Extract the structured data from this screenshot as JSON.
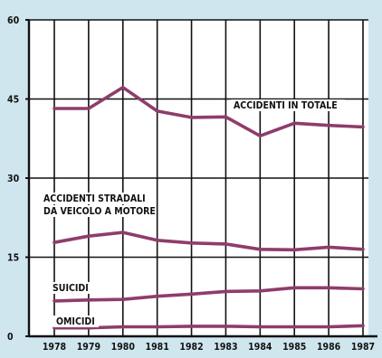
{
  "chart_data": {
    "type": "line",
    "title": "",
    "xlabel": "",
    "ylabel": "",
    "categories": [
      "1978",
      "1979",
      "1980",
      "1981",
      "1982",
      "1983",
      "1984",
      "1985",
      "1986",
      "1987"
    ],
    "ylim": [
      0,
      60
    ],
    "yticks": [
      0,
      15,
      30,
      45,
      60
    ],
    "grid": true,
    "series": [
      {
        "name": "ACCIDENTI IN TOTALE",
        "label_lines": [
          "ACCIDENTI IN TOTALE"
        ],
        "values": [
          43.2,
          43.2,
          47.2,
          42.7,
          41.5,
          41.6,
          38.0,
          40.4,
          40.0,
          39.7
        ]
      },
      {
        "name": "ACCIDENTI STRADALI DA VEICOLO A MOTORE",
        "label_lines": [
          "ACCIDENTI STRADALI",
          "DA VEICOLO A MOTORE"
        ],
        "values": [
          17.8,
          19.0,
          19.7,
          18.2,
          17.7,
          17.5,
          16.5,
          16.4,
          16.9,
          16.5
        ]
      },
      {
        "name": "SUICIDI",
        "label_lines": [
          "SUICIDI"
        ],
        "values": [
          6.7,
          6.9,
          7.0,
          7.6,
          8.0,
          8.5,
          8.6,
          9.2,
          9.2,
          9.0
        ]
      },
      {
        "name": "OMICIDI",
        "label_lines": [
          "OMICIDI"
        ],
        "values": [
          1.6,
          1.6,
          1.8,
          1.8,
          1.9,
          1.9,
          1.8,
          1.8,
          1.8,
          2.0
        ]
      }
    ],
    "colors": {
      "background": "#cfe6ef",
      "plot_background": "#ffffff",
      "series_line": "#8e3d6b",
      "axis": "#111111"
    }
  }
}
